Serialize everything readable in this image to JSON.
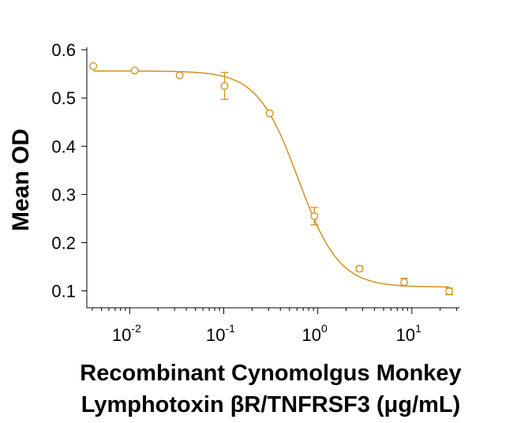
{
  "chart_data": {
    "type": "scatter",
    "color": "#D4901C",
    "ylabel": "Mean OD",
    "xlabel_lines": [
      "Recombinant Cynomolgus Monkey",
      "Lymphotoxin βR/TNFRSF3 (μg/mL)"
    ],
    "xscale": "log",
    "xlim": [
      0.0035,
      32
    ],
    "ylim": [
      0.065,
      0.605
    ],
    "y_ticks": [
      0.1,
      0.2,
      0.3,
      0.4,
      0.5,
      0.6
    ],
    "y_tick_labels": [
      "0.1",
      "0.2",
      "0.3",
      "0.4",
      "0.5",
      "0.6"
    ],
    "x_ticks": [
      {
        "value": 0.01,
        "base": "10",
        "exp": "-2"
      },
      {
        "value": 0.1,
        "base": "10",
        "exp": "-1"
      },
      {
        "value": 1,
        "base": "10",
        "exp": "0"
      },
      {
        "value": 10,
        "base": "10",
        "exp": "1"
      }
    ],
    "points": [
      {
        "x": 0.0041,
        "y": 0.566,
        "err": 0
      },
      {
        "x": 0.0113,
        "y": 0.557,
        "err": 0
      },
      {
        "x": 0.034,
        "y": 0.547,
        "err": 0
      },
      {
        "x": 0.102,
        "y": 0.525,
        "err": 0.028
      },
      {
        "x": 0.308,
        "y": 0.468,
        "err": 0
      },
      {
        "x": 0.92,
        "y": 0.255,
        "err": 0.018
      },
      {
        "x": 2.78,
        "y": 0.146,
        "err": 0.005
      },
      {
        "x": 8.3,
        "y": 0.118,
        "err": 0.008
      },
      {
        "x": 25,
        "y": 0.099,
        "err": 0.007
      }
    ],
    "fit": {
      "model": "4PL",
      "top": 0.556,
      "bottom": 0.108,
      "ec50": 0.62,
      "hill": 2.0,
      "x_range": [
        0.0041,
        25
      ]
    }
  }
}
